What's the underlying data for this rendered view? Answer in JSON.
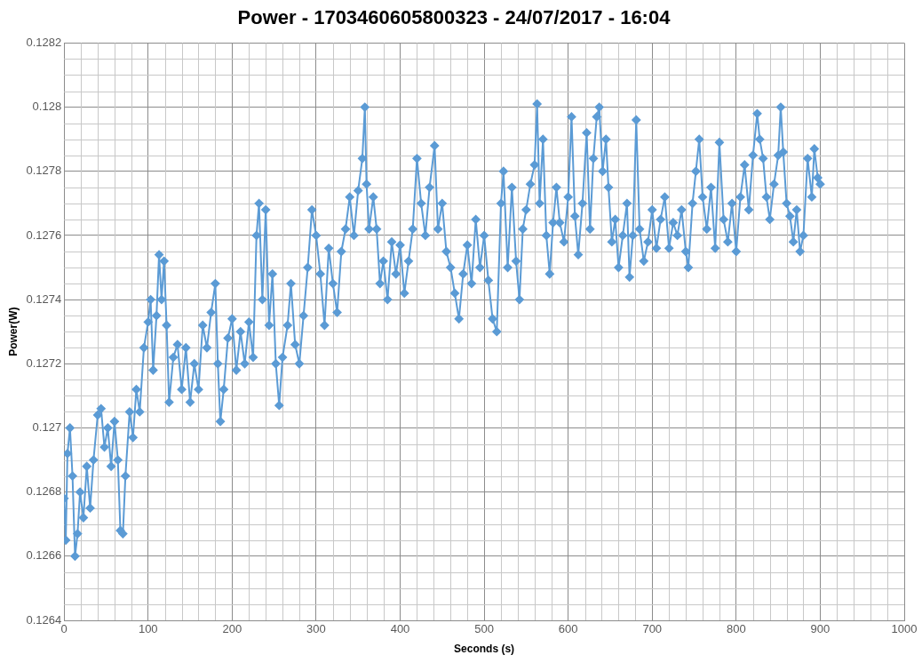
{
  "chart_data": {
    "type": "line",
    "title": "Power - 1703460605800323 - 24/07/2017 - 16:04",
    "xlabel": "Seconds (s)",
    "ylabel": "Power(W)",
    "x": [
      0,
      2,
      4,
      7,
      10,
      13,
      16,
      19,
      23,
      27,
      31,
      35,
      40,
      44,
      48,
      52,
      56,
      60,
      64,
      67,
      70,
      73,
      78,
      82,
      86,
      90,
      95,
      100,
      103,
      106,
      110,
      113,
      116,
      119,
      122,
      125,
      130,
      135,
      140,
      145,
      150,
      155,
      160,
      165,
      170,
      175,
      180,
      183,
      186,
      190,
      195,
      200,
      205,
      210,
      215,
      220,
      225,
      229,
      232,
      236,
      240,
      244,
      248,
      252,
      256,
      260,
      266,
      270,
      275,
      280,
      285,
      290,
      295,
      300,
      305,
      310,
      315,
      320,
      325,
      330,
      335,
      340,
      345,
      350,
      355,
      358,
      360,
      363,
      368,
      372,
      376,
      380,
      385,
      390,
      395,
      400,
      405,
      410,
      415,
      420,
      425,
      430,
      435,
      441,
      445,
      450,
      455,
      460,
      465,
      470,
      475,
      480,
      485,
      490,
      495,
      500,
      505,
      510,
      515,
      520,
      523,
      528,
      533,
      538,
      542,
      546,
      550,
      555,
      560,
      563,
      566,
      570,
      574,
      578,
      582,
      586,
      590,
      595,
      600,
      604,
      608,
      612,
      617,
      622,
      626,
      630,
      634,
      637,
      641,
      645,
      648,
      652,
      656,
      660,
      665,
      670,
      673,
      677,
      681,
      685,
      690,
      695,
      700,
      705,
      710,
      715,
      720,
      725,
      730,
      735,
      740,
      743,
      748,
      752,
      756,
      760,
      765,
      770,
      775,
      780,
      785,
      790,
      795,
      800,
      805,
      810,
      815,
      820,
      825,
      828,
      832,
      836,
      840,
      845,
      850,
      853,
      856,
      860,
      864,
      868,
      872,
      876,
      880,
      885,
      890,
      893,
      897,
      900
    ],
    "series": [
      {
        "color": "#5b9bd5",
        "values": [
          0.12678,
          0.12665,
          0.12692,
          0.127,
          0.12685,
          0.1266,
          0.12667,
          0.1268,
          0.12672,
          0.12688,
          0.12675,
          0.1269,
          0.12704,
          0.12706,
          0.12694,
          0.127,
          0.12688,
          0.12702,
          0.1269,
          0.12668,
          0.12667,
          0.12685,
          0.12705,
          0.12697,
          0.12712,
          0.12705,
          0.12725,
          0.12733,
          0.1274,
          0.12718,
          0.12735,
          0.12754,
          0.1274,
          0.12752,
          0.12732,
          0.12708,
          0.12722,
          0.12726,
          0.12712,
          0.12725,
          0.12708,
          0.1272,
          0.12712,
          0.12732,
          0.12725,
          0.12736,
          0.12745,
          0.1272,
          0.12702,
          0.12712,
          0.12728,
          0.12734,
          0.12718,
          0.1273,
          0.1272,
          0.12733,
          0.12722,
          0.1276,
          0.1277,
          0.1274,
          0.12768,
          0.12732,
          0.12748,
          0.1272,
          0.12707,
          0.12722,
          0.12732,
          0.12745,
          0.12726,
          0.1272,
          0.12735,
          0.1275,
          0.12768,
          0.1276,
          0.12748,
          0.12732,
          0.12756,
          0.12745,
          0.12736,
          0.12755,
          0.12762,
          0.12772,
          0.1276,
          0.12774,
          0.12784,
          0.128,
          0.12776,
          0.12762,
          0.12772,
          0.12762,
          0.12745,
          0.12752,
          0.1274,
          0.12758,
          0.12748,
          0.12757,
          0.12742,
          0.12752,
          0.12762,
          0.12784,
          0.1277,
          0.1276,
          0.12775,
          0.12788,
          0.12762,
          0.1277,
          0.12755,
          0.1275,
          0.12742,
          0.12734,
          0.12748,
          0.12757,
          0.12745,
          0.12765,
          0.1275,
          0.1276,
          0.12746,
          0.12734,
          0.1273,
          0.1277,
          0.1278,
          0.1275,
          0.12775,
          0.12752,
          0.1274,
          0.12762,
          0.12768,
          0.12776,
          0.12782,
          0.12801,
          0.1277,
          0.1279,
          0.1276,
          0.12748,
          0.12764,
          0.12775,
          0.12764,
          0.12758,
          0.12772,
          0.12797,
          0.12766,
          0.12754,
          0.1277,
          0.12792,
          0.12762,
          0.12784,
          0.12797,
          0.128,
          0.1278,
          0.1279,
          0.12775,
          0.12758,
          0.12765,
          0.1275,
          0.1276,
          0.1277,
          0.12747,
          0.1276,
          0.12796,
          0.12762,
          0.12752,
          0.12758,
          0.12768,
          0.12756,
          0.12765,
          0.12772,
          0.12756,
          0.12764,
          0.1276,
          0.12768,
          0.12755,
          0.1275,
          0.1277,
          0.1278,
          0.1279,
          0.12772,
          0.12762,
          0.12775,
          0.12756,
          0.12789,
          0.12765,
          0.12758,
          0.1277,
          0.12755,
          0.12772,
          0.12782,
          0.12768,
          0.12785,
          0.12798,
          0.1279,
          0.12784,
          0.12772,
          0.12765,
          0.12776,
          0.12785,
          0.128,
          0.12786,
          0.1277,
          0.12766,
          0.12758,
          0.12768,
          0.12755,
          0.1276,
          0.12784,
          0.12772,
          0.12787,
          0.12778,
          0.12776
        ]
      }
    ],
    "xlim": [
      0,
      1000
    ],
    "xticks": [
      0,
      100,
      200,
      300,
      400,
      500,
      600,
      700,
      800,
      900,
      1000
    ],
    "ylim": [
      0.1264,
      0.1282
    ],
    "yticks": [
      0.1264,
      0.1266,
      0.1268,
      0.127,
      0.1272,
      0.1274,
      0.1276,
      0.1278,
      0.128,
      0.1282
    ],
    "grid": true,
    "legend": false,
    "marker": "diamond",
    "line_style": "solid"
  }
}
